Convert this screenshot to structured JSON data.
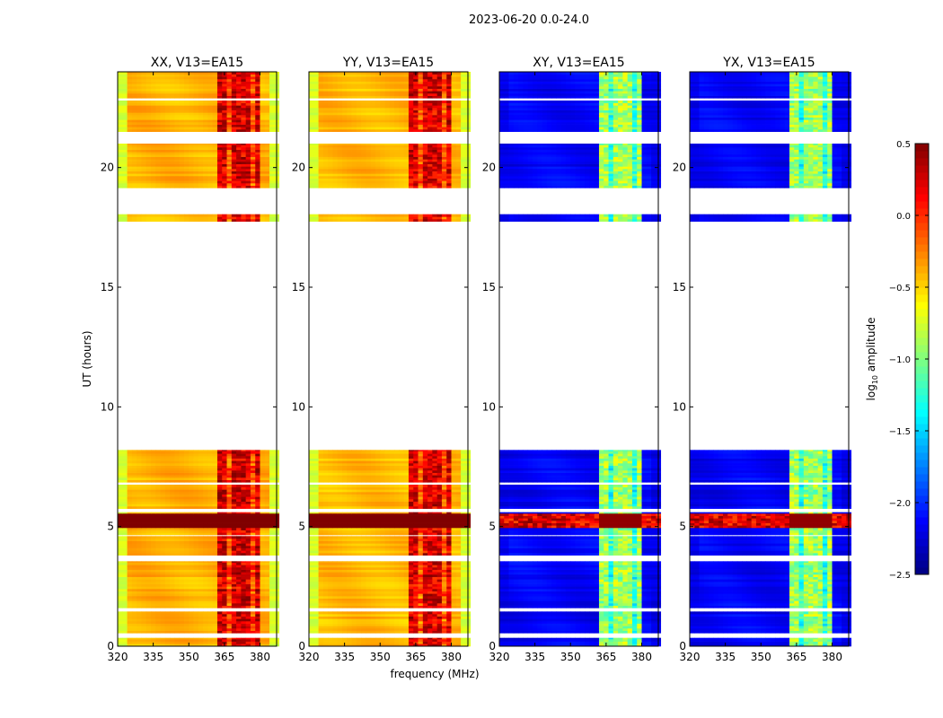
{
  "chart_data": {
    "type": "heatmap",
    "title": "2023-06-20 0.0-24.0",
    "xlabel": "frequency (MHz)",
    "ylabel": "UT (hours)",
    "xlim": [
      320,
      387
    ],
    "ylim": [
      0,
      24
    ],
    "xticks": [
      "320",
      "335",
      "350",
      "365",
      "380"
    ],
    "xtick_values": [
      320,
      335,
      350,
      365,
      380
    ],
    "yticks": [
      "0",
      "5",
      "10",
      "15",
      "20"
    ],
    "ytick_values": [
      0,
      5,
      10,
      15,
      20
    ],
    "freq_bin_mhz": 2,
    "time_bin_hours": 0.1,
    "time_segments": [
      [
        0.0,
        0.35
      ],
      [
        0.55,
        1.45
      ],
      [
        1.6,
        3.55
      ],
      [
        3.8,
        4.6
      ],
      [
        4.65,
        5.6
      ],
      [
        5.75,
        6.75
      ],
      [
        6.85,
        8.2
      ],
      [
        17.75,
        18.05
      ],
      [
        19.15,
        21.0
      ],
      [
        21.5,
        22.8
      ],
      [
        22.9,
        24.0
      ]
    ],
    "saturated_hours": [
      [
        4.9,
        5.5
      ]
    ],
    "panels": [
      {
        "title": "XX, V13=EA15",
        "base": -0.4,
        "edge": -0.75,
        "band": 0.25,
        "band_range": [
          362,
          381
        ]
      },
      {
        "title": "YY, V13=EA15",
        "base": -0.42,
        "edge": -0.75,
        "band": 0.22,
        "band_range": [
          362,
          381
        ]
      },
      {
        "title": "XY, V13=EA15",
        "base": -2.15,
        "edge": -2.2,
        "band": -0.9,
        "band_range": [
          362,
          381
        ]
      },
      {
        "title": "YX, V13=EA15",
        "base": -2.15,
        "edge": -2.2,
        "band": -0.9,
        "band_range": [
          362,
          381
        ]
      }
    ],
    "colorbar": {
      "label": "log10 amplitude",
      "label_main": "log",
      "label_sub": "10",
      "label_rest": " amplitude",
      "colormap": "jet",
      "vmin": -2.5,
      "vmax": 0.5,
      "ticks": [
        "0.5",
        "0.0",
        "−0.5",
        "−1.0",
        "−1.5",
        "−2.0",
        "−2.5"
      ],
      "tick_values": [
        0.5,
        0.0,
        -0.5,
        -1.0,
        -1.5,
        -2.0,
        -2.5
      ]
    }
  }
}
